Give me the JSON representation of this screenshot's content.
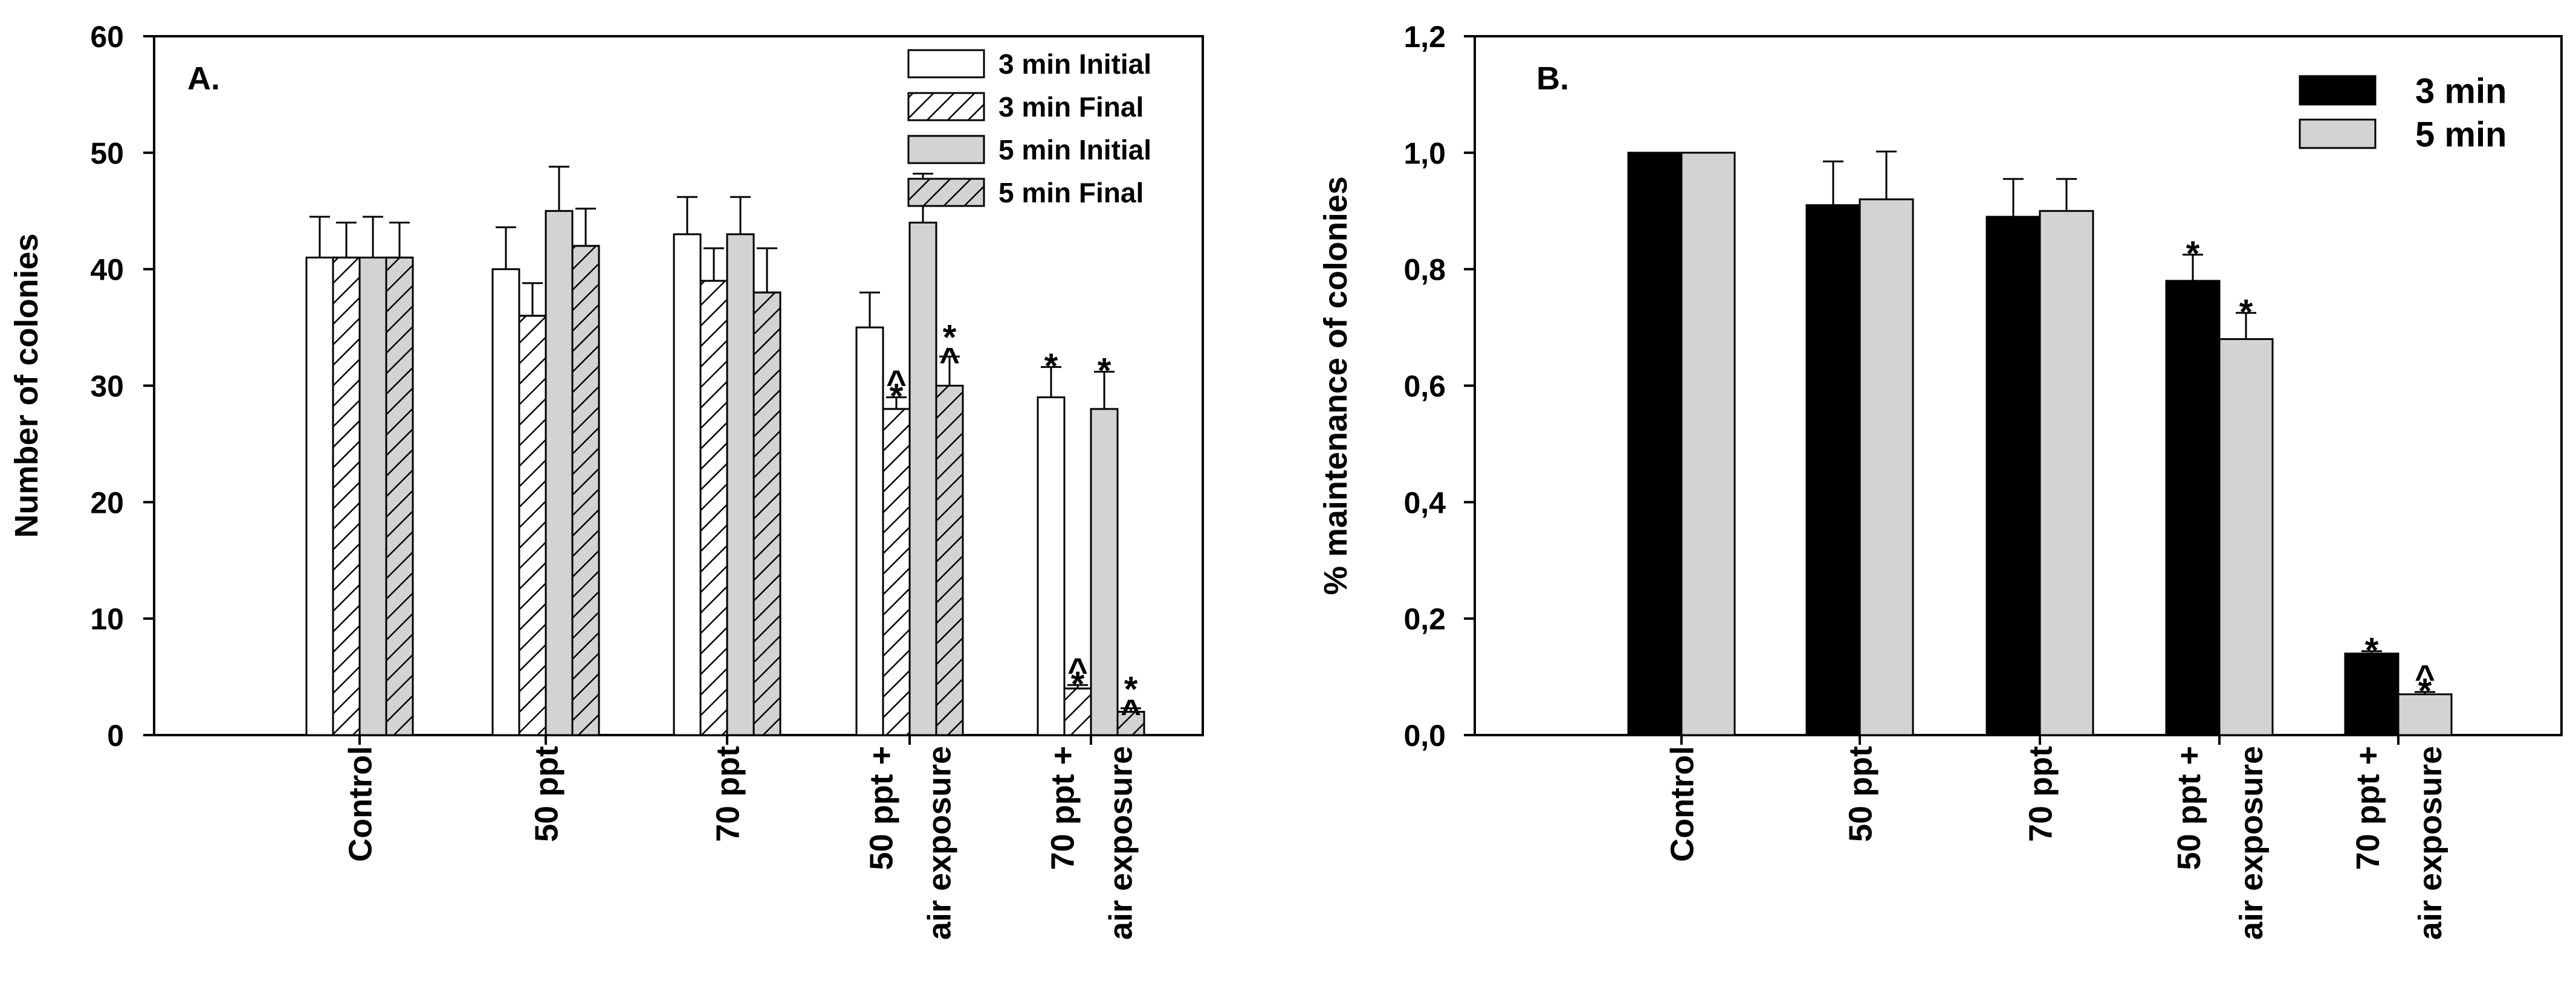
{
  "chart_data": [
    {
      "type": "bar",
      "panel_label": "A.",
      "title": "",
      "xlabel": "",
      "ylabel": "Number of colonies",
      "ylim": [
        0,
        60
      ],
      "yticks": [
        "0",
        "10",
        "20",
        "30",
        "40",
        "50",
        "60"
      ],
      "categories": [
        [
          "Control"
        ],
        [
          "50 ppt"
        ],
        [
          "70 ppt"
        ],
        [
          "50 ppt +",
          "air exposure"
        ],
        [
          "70 ppt +",
          "air exposure"
        ]
      ],
      "legend_position": "top-right",
      "series": [
        {
          "name": "3 min Initial",
          "fill": "white",
          "pattern": "none",
          "values": [
            41,
            40,
            43,
            35,
            29
          ],
          "errors": [
            3.5,
            3.6,
            3.2,
            3.0,
            2.6
          ],
          "annotations": [
            "",
            "",
            "",
            "",
            "*"
          ]
        },
        {
          "name": "3 min Final",
          "fill": "white",
          "pattern": "hatch",
          "values": [
            41,
            36,
            39,
            28,
            4
          ],
          "errors": [
            3.0,
            2.8,
            2.8,
            1.0,
            0.3
          ],
          "annotations": [
            "",
            "",
            "",
            "^*",
            "^*"
          ]
        },
        {
          "name": "5 min Initial",
          "fill": "#d3d3d3",
          "pattern": "none",
          "values": [
            41,
            45,
            43,
            44,
            28
          ],
          "errors": [
            3.5,
            3.8,
            3.2,
            4.2,
            3.2
          ],
          "annotations": [
            "",
            "",
            "",
            "",
            "*"
          ]
        },
        {
          "name": "5 min Final",
          "fill": "#d3d3d3",
          "pattern": "hatch",
          "values": [
            41,
            42,
            38,
            30,
            2
          ],
          "errors": [
            3.0,
            3.2,
            3.8,
            2.5,
            0.3
          ],
          "annotations": [
            "",
            "",
            "",
            "*^",
            "*^"
          ]
        }
      ]
    },
    {
      "type": "bar",
      "panel_label": "B.",
      "title": "",
      "xlabel": "",
      "ylabel": "% maintenance of colonies",
      "ylim": [
        0,
        1.2
      ],
      "yticks": [
        "0,0",
        "0,2",
        "0,4",
        "0,6",
        "0,8",
        "1,0",
        "1,2"
      ],
      "categories": [
        [
          "Control"
        ],
        [
          "50 ppt"
        ],
        [
          "70 ppt"
        ],
        [
          "50 ppt +",
          "air exposure"
        ],
        [
          "70 ppt +",
          "air exposure"
        ]
      ],
      "legend_position": "top-right",
      "series": [
        {
          "name": "3 min",
          "fill": "#000000",
          "pattern": "none",
          "values": [
            1.0,
            0.91,
            0.89,
            0.78,
            0.14
          ],
          "errors": [
            0,
            0.075,
            0.065,
            0.045,
            0.004
          ],
          "annotations": [
            "",
            "",
            "",
            "*",
            "*"
          ]
        },
        {
          "name": "5 min",
          "fill": "#d3d3d3",
          "pattern": "none",
          "values": [
            1.0,
            0.92,
            0.9,
            0.68,
            0.07
          ],
          "errors": [
            0,
            0.082,
            0.055,
            0.045,
            0.004
          ],
          "annotations": [
            "",
            "",
            "",
            "*",
            "^*"
          ]
        }
      ]
    }
  ]
}
